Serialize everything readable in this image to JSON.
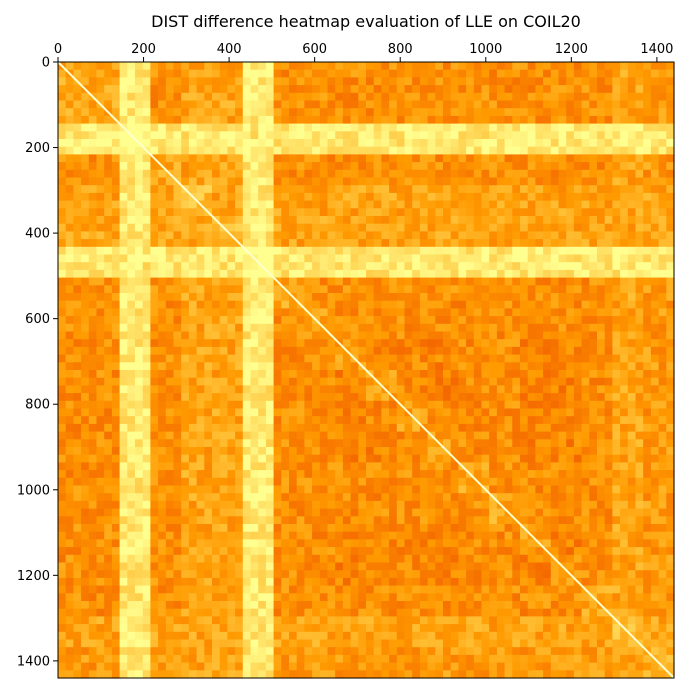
{
  "chart_data": {
    "type": "heatmap",
    "title": "DIST difference heatmap evaluation of LLE on COIL20",
    "xlabel": "",
    "ylabel": "",
    "xlim": [
      0,
      1440
    ],
    "ylim": [
      1440,
      0
    ],
    "x_ticks": [
      0,
      200,
      400,
      600,
      800,
      1000,
      1200,
      1400
    ],
    "y_ticks": [
      0,
      200,
      400,
      600,
      800,
      1000,
      1200,
      1400
    ],
    "x_tick_position": "top",
    "colormap": "hot",
    "matrix_size": 1440,
    "colorbar": false,
    "grid": false,
    "diagonal_value": "min",
    "blocks": [
      0,
      144,
      216,
      288,
      360,
      432,
      504,
      576,
      648,
      720,
      792,
      864,
      936,
      1008,
      1080,
      1152,
      1224,
      1296,
      1368,
      1440
    ],
    "block_intensity": [
      0.45,
      0.9,
      0.45,
      0.55,
      0.55,
      0.9,
      0.45,
      0.45,
      0.4,
      0.4,
      0.42,
      0.4,
      0.45,
      0.45,
      0.4,
      0.4,
      0.45,
      0.55,
      0.5
    ],
    "colors": {
      "low": "#e83000",
      "mid": "#ff9a00",
      "high": "#ffff90",
      "diagonal": "#ffffd0"
    }
  }
}
